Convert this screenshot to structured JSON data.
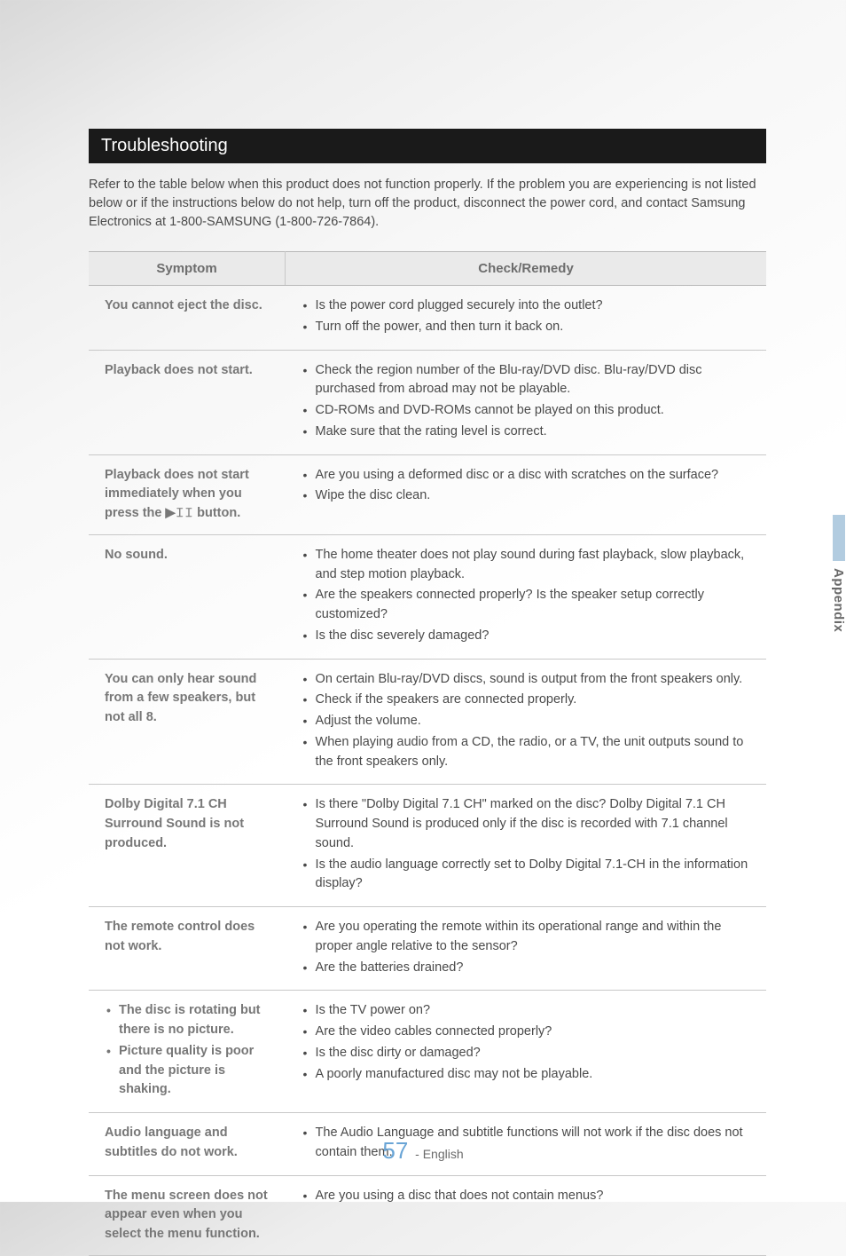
{
  "heading": "Troubleshooting",
  "intro": "Refer to the table below when this product does not function properly. If the problem you are experiencing is not listed below or if the instructions below do not help, turn off the product, disconnect the power cord, and contact Samsung Electronics at 1-800-SAMSUNG (1-800-726-7864).",
  "table": {
    "headers": [
      "Symptom",
      "Check/Remedy"
    ],
    "rows": [
      {
        "symptom": "You cannot eject the disc.",
        "remedies": [
          "Is the power cord plugged securely into the outlet?",
          "Turn off the power, and then turn it back on."
        ]
      },
      {
        "symptom": "Playback does not start.",
        "remedies": [
          "Check the region number of the Blu-ray/DVD disc. Blu-ray/DVD disc purchased from abroad may not be playable.",
          "CD-ROMs and DVD-ROMs cannot be played on this product.",
          "Make sure that the rating level is correct."
        ]
      },
      {
        "symptom": "Playback does not start immediately when you press the ▶𝙸𝙸 button.",
        "remedies": [
          "Are you using a deformed disc or a disc with scratches on the surface?",
          "Wipe the disc clean."
        ]
      },
      {
        "symptom": "No sound.",
        "remedies": [
          "The home theater does not play sound during fast playback, slow playback, and step motion playback.",
          "Are the speakers connected properly? Is the speaker setup correctly customized?",
          "Is the disc severely damaged?"
        ]
      },
      {
        "symptom": "You can only hear sound from a few speakers, but not all 8.",
        "remedies": [
          "On certain Blu-ray/DVD discs, sound is output from the front speakers only.",
          "Check if the speakers are connected properly.",
          "Adjust the volume.",
          "When playing audio from a CD, the radio, or a TV, the unit outputs sound to the front speakers only."
        ]
      },
      {
        "symptom": "Dolby Digital 7.1 CH Surround Sound is not produced.",
        "remedies": [
          "Is there \"Dolby Digital 7.1 CH\" marked on the disc? Dolby Digital 7.1 CH Surround Sound is produced only if the disc is recorded with 7.1 channel sound.",
          "Is the audio language correctly set to Dolby Digital 7.1-CH in the information display?"
        ]
      },
      {
        "symptom": "The remote control does not work.",
        "remedies": [
          "Are you operating the remote within its operational range and within the proper angle relative to the sensor?",
          "Are the batteries drained?"
        ]
      },
      {
        "symptom_list": [
          "The disc is rotating but there is no picture.",
          "Picture quality is poor and the picture is shaking."
        ],
        "remedies": [
          "Is the TV power on?",
          "Are the video cables connected properly?",
          "Is the disc dirty or damaged?",
          "A poorly manufactured disc may not be playable."
        ]
      },
      {
        "symptom": "Audio language and subtitles do not work.",
        "remedies": [
          "The Audio Language and subtitle functions will not work if the disc does not contain them."
        ]
      },
      {
        "symptom": "The menu screen does not appear even when you select the menu function.",
        "remedies": [
          "Are you using a disc that does not contain menus?"
        ]
      }
    ]
  },
  "side_label": "Appendix",
  "footer": {
    "page": "57",
    "lang": "- English"
  }
}
